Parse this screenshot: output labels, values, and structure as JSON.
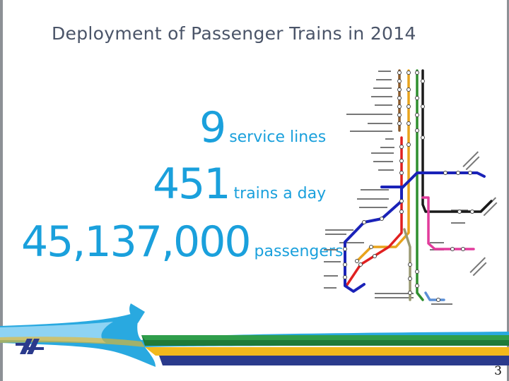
{
  "slide": {
    "title": "Deployment of Passenger Trains in 2014",
    "stats": [
      {
        "value": "9",
        "label": "service lines"
      },
      {
        "value": "451",
        "label": "trains a day"
      },
      {
        "value": "45,137,000",
        "label": "passengers"
      }
    ],
    "page_number": "3"
  },
  "colors": {
    "title": "#4a5468",
    "stat": "#1aa0dc",
    "lines": [
      "#8a5a2b",
      "#e8a31c",
      "#2f8f2f",
      "#1a1a1a",
      "#e23b9c",
      "#e02020",
      "#1a22b8",
      "#9a9a72",
      "#5b8fd6"
    ]
  },
  "icons": {
    "map": "railway-network-map",
    "logo": "israel-railways-logo"
  }
}
